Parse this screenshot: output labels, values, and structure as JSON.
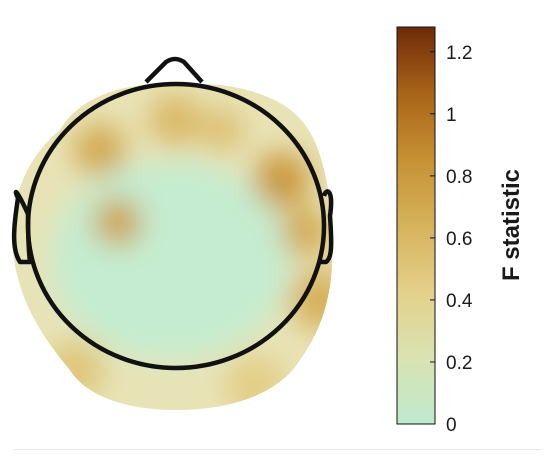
{
  "chart_data": {
    "type": "heatmap",
    "subtype": "topographic-scalp-map",
    "colorbar": {
      "label": "F statistic",
      "min": 0,
      "max": 1.28,
      "ticks": [
        0,
        0.2,
        0.4,
        0.6,
        0.8,
        1,
        1.2
      ],
      "tick_labels": [
        "0",
        "0.2",
        "0.4",
        "0.6",
        "0.8",
        "1",
        "1.2"
      ],
      "colormap": [
        "#bfeacd",
        "#d9e3b1",
        "#e4d08a",
        "#d6b25c",
        "#c69133",
        "#a86419",
        "#6e2a08"
      ]
    },
    "hotspots": [
      {
        "region": "left-frontal",
        "value": 0.7
      },
      {
        "region": "left-central",
        "value": 0.75
      },
      {
        "region": "mid-frontal",
        "value": 0.6
      },
      {
        "region": "right-frontal",
        "value": 0.55
      },
      {
        "region": "right-central",
        "value": 0.8
      },
      {
        "region": "right-temporal",
        "value": 0.7
      },
      {
        "region": "right-parietal",
        "value": 0.65
      },
      {
        "region": "left-occipital",
        "value": 0.5
      },
      {
        "region": "right-occipital",
        "value": 0.45
      }
    ]
  }
}
